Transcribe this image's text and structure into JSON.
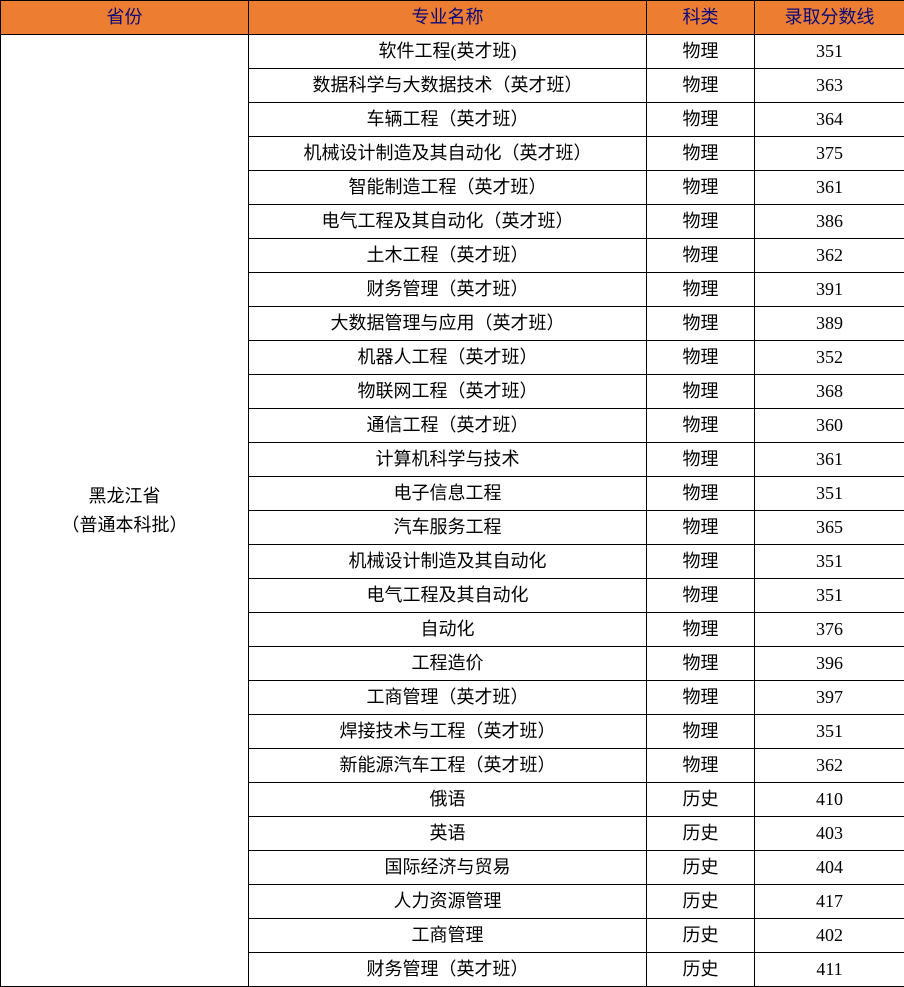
{
  "table": {
    "header_bg": "#ed7d31",
    "header_color": "#0a0a7a",
    "columns": [
      "省份",
      "专业名称",
      "科类",
      "录取分数线"
    ],
    "province_line1": "黑龙江省",
    "province_line2": "（普通本科批）",
    "rows": [
      {
        "major": "软件工程(英才班)",
        "category": "物理",
        "score": "351"
      },
      {
        "major": "数据科学与大数据技术（英才班）",
        "category": "物理",
        "score": "363"
      },
      {
        "major": "车辆工程（英才班）",
        "category": "物理",
        "score": "364"
      },
      {
        "major": "机械设计制造及其自动化（英才班）",
        "category": "物理",
        "score": "375"
      },
      {
        "major": "智能制造工程（英才班）",
        "category": "物理",
        "score": "361"
      },
      {
        "major": "电气工程及其自动化（英才班）",
        "category": "物理",
        "score": "386"
      },
      {
        "major": "土木工程（英才班）",
        "category": "物理",
        "score": "362"
      },
      {
        "major": "财务管理（英才班）",
        "category": "物理",
        "score": "391"
      },
      {
        "major": "大数据管理与应用（英才班）",
        "category": "物理",
        "score": "389"
      },
      {
        "major": "机器人工程（英才班）",
        "category": "物理",
        "score": "352"
      },
      {
        "major": "物联网工程（英才班）",
        "category": "物理",
        "score": "368"
      },
      {
        "major": "通信工程（英才班）",
        "category": "物理",
        "score": "360"
      },
      {
        "major": "计算机科学与技术",
        "category": "物理",
        "score": "361"
      },
      {
        "major": "电子信息工程",
        "category": "物理",
        "score": "351"
      },
      {
        "major": "汽车服务工程",
        "category": "物理",
        "score": "365"
      },
      {
        "major": "机械设计制造及其自动化",
        "category": "物理",
        "score": "351"
      },
      {
        "major": "电气工程及其自动化",
        "category": "物理",
        "score": "351"
      },
      {
        "major": "自动化",
        "category": "物理",
        "score": "376"
      },
      {
        "major": "工程造价",
        "category": "物理",
        "score": "396"
      },
      {
        "major": "工商管理（英才班）",
        "category": "物理",
        "score": "397"
      },
      {
        "major": "焊接技术与工程（英才班）",
        "category": "物理",
        "score": "351"
      },
      {
        "major": "新能源汽车工程（英才班）",
        "category": "物理",
        "score": "362"
      },
      {
        "major": "俄语",
        "category": "历史",
        "score": "410"
      },
      {
        "major": "英语",
        "category": "历史",
        "score": "403"
      },
      {
        "major": "国际经济与贸易",
        "category": "历史",
        "score": "404"
      },
      {
        "major": "人力资源管理",
        "category": "历史",
        "score": "417"
      },
      {
        "major": "工商管理",
        "category": "历史",
        "score": "402"
      },
      {
        "major": "财务管理（英才班）",
        "category": "历史",
        "score": "411"
      }
    ]
  }
}
